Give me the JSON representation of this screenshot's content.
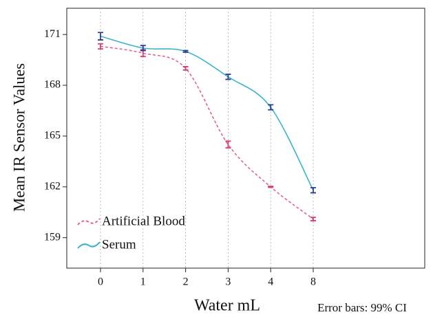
{
  "chart_data": {
    "type": "line",
    "ylabel": "Mean IR Sensor Values",
    "xlabel": "Water mL",
    "note": "Error bars: 99% CI",
    "categories": [
      "0",
      "1",
      "2",
      "3",
      "4",
      "8"
    ],
    "ylim": [
      157.2,
      172.55
    ],
    "yticks": [
      159,
      162,
      165,
      168,
      171
    ],
    "grid": true,
    "legend": "lower left",
    "series": [
      {
        "name": "Artificial Blood",
        "color": "#e5609a",
        "error_color": "#d63c78",
        "dashed": true,
        "values": [
          170.3,
          169.9,
          169.0,
          164.5,
          162.0,
          160.1
        ],
        "errors": [
          0.15,
          0.2,
          0.1,
          0.2,
          0.03,
          0.1
        ]
      },
      {
        "name": "Serum",
        "color": "#3bb3cc",
        "error_color": "#2c3e8f",
        "dashed": false,
        "values": [
          170.9,
          170.2,
          170.0,
          168.5,
          166.7,
          161.8
        ],
        "errors": [
          0.22,
          0.15,
          0.05,
          0.15,
          0.15,
          0.15
        ]
      }
    ]
  }
}
